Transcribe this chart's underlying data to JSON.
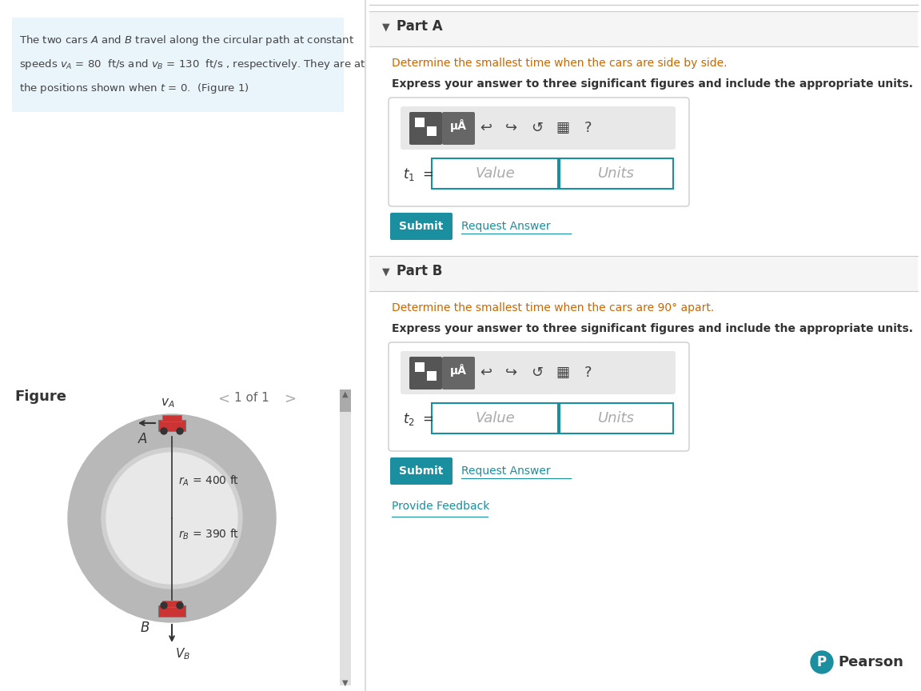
{
  "bg_color": "#ffffff",
  "left_panel_bg": "#eaf4fb",
  "figure_label": "Figure",
  "nav_text": "1 of 1",
  "part_a_header": "Part A",
  "part_a_q1": "Determine the smallest time when the cars are side by side.",
  "part_a_q2": "Express your answer to three significant figures and include the appropriate units.",
  "part_b_header": "Part B",
  "part_b_q1": "Determine the smallest time when the cars are 90° apart.",
  "part_b_q2": "Express your answer to three significant figures and include the appropriate units.",
  "submit_bg": "#1a8fa0",
  "submit_text_color": "#ffffff",
  "request_answer_color": "#1a8fa0",
  "provide_feedback_color": "#1a8fa0",
  "divider_color": "#cccccc",
  "part_header_bg": "#f5f5f5",
  "input_border_color": "#1a8fa0",
  "input_bg": "#ffffff",
  "toolbar_bg": "#e8e8e8",
  "circle_ring_color": "#b8b8b8",
  "circle_inner_color": "#d0d0d0",
  "car_color": "#cc3333",
  "rA": 400,
  "rB": 390,
  "pearson_color": "#1a8fa0",
  "text_color_dark": "#333333",
  "text_color_orange": "#cc6600",
  "text_color_gray": "#aaaaaa"
}
